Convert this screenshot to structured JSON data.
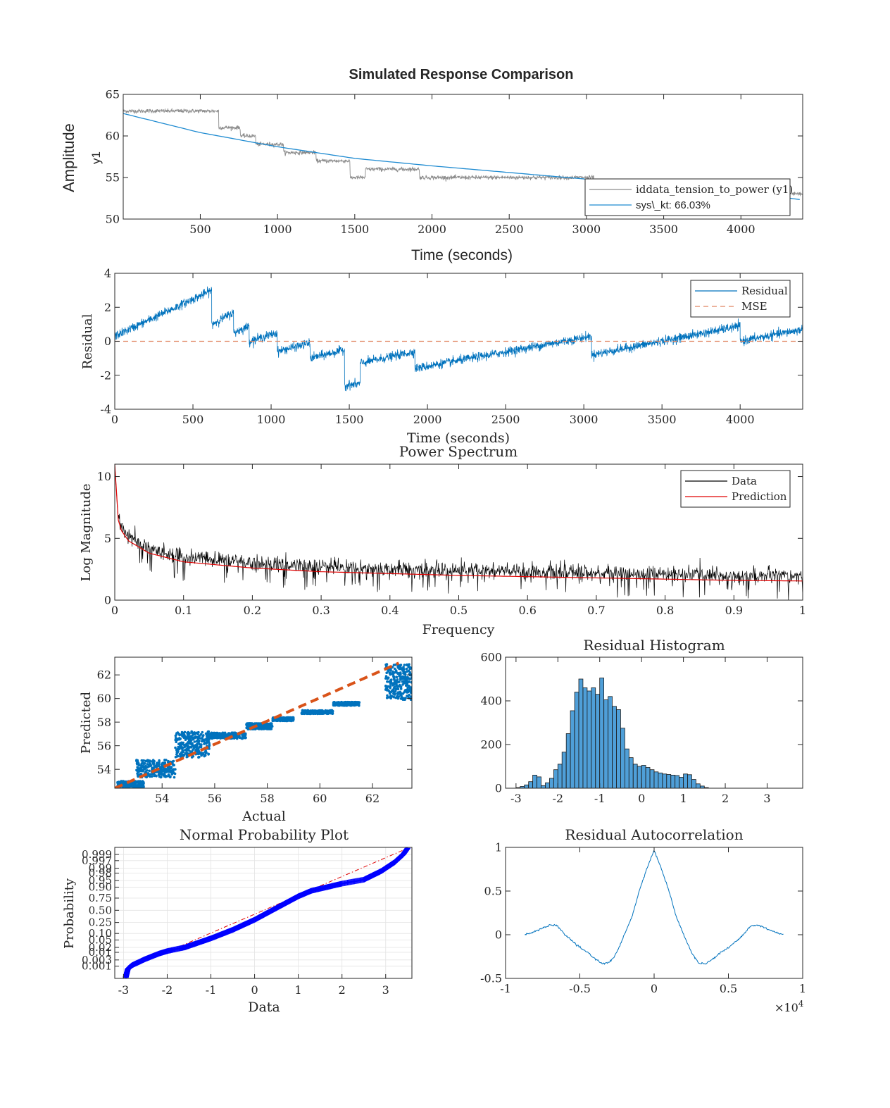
{
  "figure": {
    "suptitle": "Simulated Response Comparison"
  },
  "chart_data": [
    {
      "id": "response",
      "type": "line",
      "title": "",
      "ylabel_outer": "Amplitude",
      "ylabel": "y1",
      "xlabel": "Time (seconds)",
      "xlim": [
        1,
        4400
      ],
      "ylim": [
        50,
        65
      ],
      "xticks": [
        500,
        1000,
        1500,
        2000,
        2500,
        3000,
        3500,
        4000
      ],
      "yticks": [
        50,
        55,
        60,
        65
      ],
      "legend_position": "lower-right",
      "colors": {
        "measured": "#8c8c8c",
        "model": "#1f8bd1"
      },
      "series": [
        {
          "name": "iddata_tension_to_power (y1)",
          "kind": "step-noisy",
          "steps": [
            {
              "from": 0,
              "to": 620,
              "value": 63.0
            },
            {
              "from": 620,
              "to": 760,
              "value": 61.0
            },
            {
              "from": 760,
              "to": 860,
              "value": 60.0
            },
            {
              "from": 860,
              "to": 1040,
              "value": 59.0
            },
            {
              "from": 1040,
              "to": 1250,
              "value": 58.0
            },
            {
              "from": 1250,
              "to": 1470,
              "value": 57.0
            },
            {
              "from": 1470,
              "to": 1570,
              "value": 55.0
            },
            {
              "from": 1570,
              "to": 1920,
              "value": 56.0
            },
            {
              "from": 1920,
              "to": 3050,
              "value": 55.0
            }
          ],
          "tail": {
            "from": 4330,
            "to": 4400,
            "value": 53.0
          }
        },
        {
          "name": "sys\\_kt: 66.03%",
          "kind": "curve",
          "x": [
            1,
            500,
            1000,
            1500,
            2000,
            2500,
            3000,
            3500,
            4000,
            4400
          ],
          "y": [
            62.7,
            60.4,
            58.7,
            57.3,
            56.4,
            55.6,
            54.8,
            54.1,
            53.3,
            52.3
          ]
        }
      ]
    },
    {
      "id": "residual",
      "type": "line",
      "title": "",
      "ylabel": "Residual",
      "xlabel": "Time (seconds)",
      "xlim": [
        0,
        4400
      ],
      "ylim": [
        -4,
        4
      ],
      "xticks": [
        0,
        500,
        1000,
        1500,
        2000,
        2500,
        3000,
        3500,
        4000
      ],
      "yticks": [
        -4,
        -2,
        0,
        2,
        4
      ],
      "legend_position": "top-right",
      "colors": {
        "residual": "#0072bd",
        "mse": "#e08460"
      },
      "series": [
        {
          "name": "Residual",
          "segments": [
            {
              "from": 0,
              "to": 620,
              "start": 0.3,
              "end": 3.0
            },
            {
              "from": 620,
              "to": 760,
              "start": 1.0,
              "end": 1.7
            },
            {
              "from": 760,
              "to": 860,
              "start": 0.5,
              "end": 0.9
            },
            {
              "from": 860,
              "to": 1040,
              "start": 0.0,
              "end": 0.5
            },
            {
              "from": 1040,
              "to": 1250,
              "start": -0.6,
              "end": -0.1
            },
            {
              "from": 1250,
              "to": 1470,
              "start": -1.0,
              "end": -0.5
            },
            {
              "from": 1470,
              "to": 1570,
              "start": -2.6,
              "end": -2.5
            },
            {
              "from": 1570,
              "to": 1920,
              "start": -1.3,
              "end": -0.6
            },
            {
              "from": 1920,
              "to": 3050,
              "start": -1.6,
              "end": 0.3
            },
            {
              "from": 3050,
              "to": 4000,
              "start": -0.8,
              "end": 0.9
            },
            {
              "from": 4000,
              "to": 4400,
              "start": 0.0,
              "end": 0.7
            }
          ]
        },
        {
          "name": "MSE",
          "value": 0
        }
      ]
    },
    {
      "id": "spectrum",
      "type": "line",
      "title": "Power Spectrum",
      "ylabel": "Log Magnitude",
      "xlabel": "Frequency",
      "xlim": [
        0,
        1
      ],
      "ylim": [
        0,
        11
      ],
      "xticks": [
        0,
        0.1,
        0.2,
        0.3,
        0.4,
        0.5,
        0.6,
        0.7,
        0.8,
        0.9,
        1
      ],
      "xticklabels": [
        "0",
        "0.1",
        "0.2",
        "0.3",
        "0.4",
        "0.5",
        "0.6",
        "0.7",
        "0.8",
        "0.9",
        "1"
      ],
      "yticks": [
        0,
        5,
        10
      ],
      "legend_position": "top-right",
      "colors": {
        "data": "#000000",
        "prediction": "#e00000"
      },
      "series": [
        {
          "name": "Data",
          "kind": "noisy-around-prediction"
        },
        {
          "name": "Prediction",
          "x": [
            0.0,
            0.005,
            0.01,
            0.02,
            0.05,
            0.1,
            0.2,
            0.3,
            0.5,
            0.7,
            0.9,
            1.0
          ],
          "y": [
            11.0,
            6.5,
            5.6,
            4.8,
            3.8,
            3.1,
            2.6,
            2.3,
            2.0,
            1.8,
            1.6,
            1.55
          ]
        }
      ]
    },
    {
      "id": "scatter",
      "type": "scatter",
      "title": "",
      "ylabel": "Predicted",
      "xlabel": "Actual",
      "xlim": [
        52.2,
        63.5
      ],
      "ylim": [
        52.4,
        63.5
      ],
      "xticks": [
        54,
        56,
        58,
        60,
        62
      ],
      "yticks": [
        54,
        56,
        58,
        60,
        62
      ],
      "colors": {
        "points": "#0072bd",
        "fit": "#d95319"
      },
      "clusters": [
        {
          "x": [
            52.3,
            53.3
          ],
          "y": [
            52.5,
            53.0
          ]
        },
        {
          "x": [
            53.0,
            54.5
          ],
          "y": [
            53.3,
            54.8
          ]
        },
        {
          "x": [
            54.5,
            55.8
          ],
          "y": [
            55.0,
            57.2
          ]
        },
        {
          "x": [
            55.7,
            57.2
          ],
          "y": [
            56.6,
            57.1
          ]
        },
        {
          "x": [
            57.2,
            58.2
          ],
          "y": [
            57.4,
            57.9
          ]
        },
        {
          "x": [
            58.2,
            59.0
          ],
          "y": [
            58.1,
            58.4
          ]
        },
        {
          "x": [
            59.3,
            60.5
          ],
          "y": [
            58.7,
            59.0
          ]
        },
        {
          "x": [
            60.5,
            61.5
          ],
          "y": [
            59.4,
            59.7
          ]
        },
        {
          "x": [
            62.5,
            63.5
          ],
          "y": [
            59.9,
            62.9
          ]
        }
      ],
      "fit_line": {
        "x": [
          52.2,
          63.0
        ],
        "y": [
          52.4,
          63.0
        ]
      }
    },
    {
      "id": "histogram",
      "type": "bar",
      "title": "Residual Histogram",
      "xlim": [
        -3.25,
        3.85
      ],
      "ylim": [
        0,
        600
      ],
      "xticks": [
        -3,
        -2,
        -1,
        0,
        1,
        2,
        3
      ],
      "yticks": [
        0,
        200,
        400,
        600
      ],
      "bin_width": 0.1,
      "bin_start": -3.0,
      "color": "#4f9fd8",
      "values": [
        3,
        8,
        15,
        30,
        60,
        52,
        12,
        25,
        45,
        85,
        110,
        165,
        250,
        355,
        440,
        500,
        460,
        445,
        460,
        430,
        505,
        405,
        420,
        375,
        360,
        275,
        180,
        140,
        110,
        100,
        105,
        95,
        85,
        75,
        70,
        65,
        63,
        60,
        58,
        50,
        65,
        62,
        40,
        20,
        10,
        3
      ]
    },
    {
      "id": "normprob",
      "type": "scatter",
      "title": "Normal Probability Plot",
      "ylabel": "Probability",
      "xlabel": "Data",
      "xlim": [
        -3,
        3.5
      ],
      "xticks": [
        -3,
        -2,
        -1,
        0,
        1,
        2,
        3
      ],
      "yticks": [
        0.001,
        0.003,
        0.01,
        0.02,
        0.05,
        0.1,
        0.25,
        0.5,
        0.75,
        0.9,
        0.95,
        0.98,
        0.99,
        0.997,
        0.999
      ],
      "yticklabels": [
        "0.001",
        "0.003",
        "0.01",
        "0.02",
        "0.05",
        "0.10",
        "0.25",
        "0.50",
        "0.75",
        "0.90",
        "0.95",
        "0.98",
        "0.99",
        "0.997",
        "0.999"
      ],
      "colors": {
        "points": "#0000ff",
        "ref": "#e00000"
      },
      "curve": {
        "x": [
          -2.95,
          -2.9,
          -2.8,
          -2.5,
          -2.2,
          -2.0,
          -1.6,
          -1.0,
          -0.5,
          0.0,
          0.5,
          1.0,
          1.3,
          2.0,
          2.5,
          2.9,
          3.2,
          3.4,
          3.5
        ],
        "p": [
          0.0001,
          0.0006,
          0.0012,
          0.0035,
          0.008,
          0.012,
          0.02,
          0.06,
          0.14,
          0.3,
          0.55,
          0.78,
          0.86,
          0.93,
          0.955,
          0.985,
          0.996,
          0.999,
          0.9997
        ]
      },
      "ref_line": {
        "x": [
          -2.9,
          3.5
        ],
        "p": [
          0.0006,
          0.9997
        ]
      }
    },
    {
      "id": "autocorr",
      "type": "line",
      "title": "Residual Autocorrelation",
      "xlim": [
        -10000,
        10000
      ],
      "ylim": [
        -0.5,
        1
      ],
      "xticks": [
        -10000,
        -5000,
        0,
        5000,
        10000
      ],
      "xticklabels": [
        "-1",
        "-0.5",
        "0",
        "0.5",
        "1"
      ],
      "xscale_label": "×10",
      "xscale_exp": "4",
      "yticks": [
        -0.5,
        0,
        0.5,
        1
      ],
      "color": "#0072bd",
      "series": [
        {
          "name": "",
          "x": [
            -8700,
            -8000,
            -7000,
            -6500,
            -6000,
            -5000,
            -4500,
            -4000,
            -3500,
            -3000,
            -2500,
            -2000,
            -1500,
            -1000,
            -500,
            0,
            500,
            1000,
            1500,
            2000,
            2500,
            3000,
            3500,
            4000,
            4500,
            5000,
            6000,
            6500,
            7000,
            8000,
            8700
          ],
          "y": [
            0.0,
            0.04,
            0.11,
            0.1,
            0.0,
            -0.15,
            -0.2,
            -0.27,
            -0.33,
            -0.32,
            -0.2,
            0.0,
            0.2,
            0.5,
            0.75,
            0.97,
            0.75,
            0.5,
            0.2,
            0.0,
            -0.2,
            -0.32,
            -0.33,
            -0.27,
            -0.2,
            -0.15,
            0.0,
            0.1,
            0.11,
            0.04,
            0.0
          ]
        }
      ]
    }
  ]
}
